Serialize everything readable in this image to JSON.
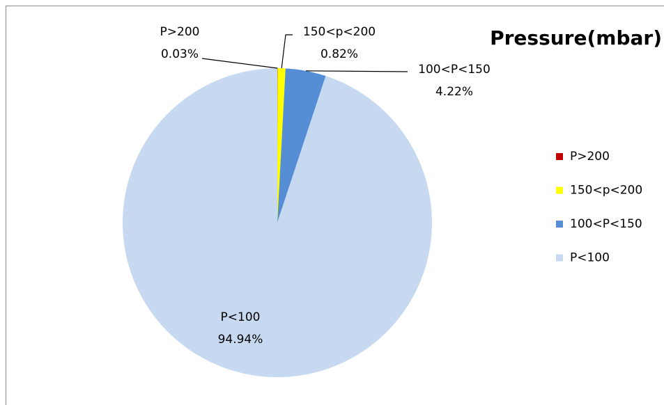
{
  "chart_data": {
    "type": "pie",
    "title": "Pressure(mbar)",
    "categories": [
      "P>200",
      "150<p<200",
      "100<P<150",
      "P<100"
    ],
    "values": [
      0.03,
      0.82,
      4.22,
      94.94
    ],
    "value_labels": [
      "0.03%",
      "0.82%",
      "4.22%",
      "94.94%"
    ],
    "colors": [
      "#c00000",
      "#ffff00",
      "#558ed5",
      "#c6d9f1"
    ],
    "legend": "right"
  }
}
